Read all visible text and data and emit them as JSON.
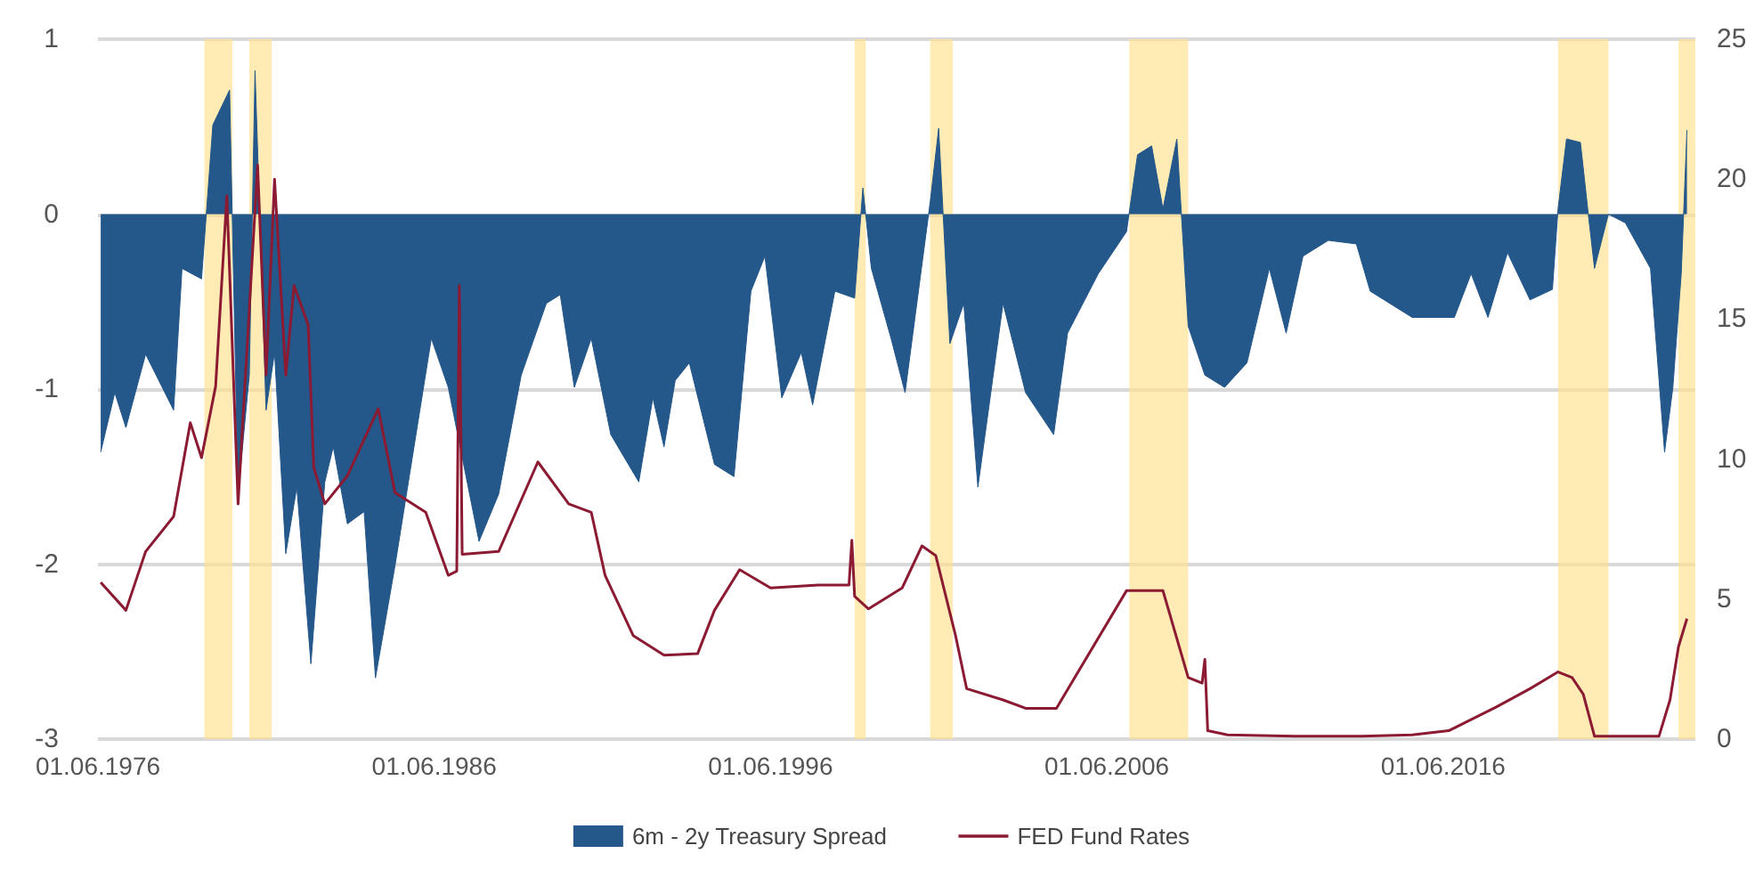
{
  "chart_data": {
    "type": "area",
    "xlim": [
      "1976-06-01",
      "2023-12-01"
    ],
    "xticks": [
      {
        "value": "1976-06-01",
        "label": "01.06.1976"
      },
      {
        "value": "1986-06-01",
        "label": "01.06.1986"
      },
      {
        "value": "1996-06-01",
        "label": "01.06.1996"
      },
      {
        "value": "2006-06-01",
        "label": "01.06.2006"
      },
      {
        "value": "2016-06-01",
        "label": "01.06.2016"
      }
    ],
    "ylim": [
      -3,
      1
    ],
    "yticks": [
      -3,
      -2,
      -1,
      0,
      1
    ],
    "y2lim": [
      0,
      25
    ],
    "y2ticks": [
      0,
      5,
      10,
      15,
      20,
      25
    ],
    "grid": "y",
    "legend": "bottom",
    "marker": "none",
    "series": [
      {
        "name": "6m - 2y Treasury Spread",
        "color": "#24578a",
        "x": [
          "1976-07",
          "1976-12",
          "1977-04",
          "1977-11",
          "1978-09",
          "1978-12",
          "1979-07",
          "1979-11",
          "1980-05",
          "1980-08",
          "1980-12",
          "1981-02",
          "1981-06",
          "1981-09",
          "1982-01",
          "1982-05",
          "1982-10",
          "1983-03",
          "1983-06",
          "1983-11",
          "1984-05",
          "1984-09",
          "1985-04",
          "1986-05",
          "1986-11",
          "1987-10",
          "1988-05",
          "1989-01",
          "1989-10",
          "1990-03",
          "1990-08",
          "1991-02",
          "1991-09",
          "1992-07",
          "1992-12",
          "1993-04",
          "1993-08",
          "1994-01",
          "1994-10",
          "1995-05",
          "1995-11",
          "1996-04",
          "1996-10",
          "1997-05",
          "1997-09",
          "1998-05",
          "1998-12",
          "1999-03",
          "1999-06",
          "2000-01",
          "2000-06",
          "2001-03",
          "2001-06",
          "2001-10",
          "2002-03",
          "2002-08",
          "2003-05",
          "2004-01",
          "2004-11",
          "2005-04",
          "2006-03",
          "2007-01",
          "2007-05",
          "2007-10",
          "2008-02",
          "2008-07",
          "2008-11",
          "2009-05",
          "2009-12",
          "2010-08",
          "2011-04",
          "2011-10",
          "2012-04",
          "2013-01",
          "2013-11",
          "2014-04",
          "2015-07",
          "2016-10",
          "2017-04",
          "2017-10",
          "2018-05",
          "2019-01",
          "2019-09",
          "2019-11",
          "2020-02",
          "2020-07",
          "2020-10",
          "2020-12",
          "2021-05",
          "2021-11",
          "2022-08",
          "2023-01",
          "2023-04",
          "2023-07",
          "2023-09"
        ],
        "values": [
          -1.36,
          -1.02,
          -1.22,
          -0.8,
          -1.12,
          -0.31,
          -0.37,
          0.51,
          0.71,
          -1.6,
          -0.92,
          0.82,
          -1.12,
          -0.79,
          -1.94,
          -1.56,
          -2.57,
          -1.53,
          -1.33,
          -1.77,
          -1.7,
          -2.65,
          -2.01,
          -0.71,
          -0.99,
          -1.87,
          -1.6,
          -0.92,
          -0.51,
          -0.46,
          -0.99,
          -0.71,
          -1.26,
          -1.53,
          -1.05,
          -1.33,
          -0.95,
          -0.85,
          -1.43,
          -1.5,
          -0.44,
          -0.24,
          -1.05,
          -0.79,
          -1.09,
          -0.44,
          -0.48,
          0.15,
          -0.31,
          -0.71,
          -1.02,
          0.07,
          0.49,
          -0.74,
          -0.51,
          -1.56,
          -0.51,
          -1.02,
          -1.26,
          -0.68,
          -0.34,
          -0.1,
          0.34,
          0.39,
          0.03,
          0.43,
          -0.64,
          -0.92,
          -0.99,
          -0.85,
          -0.31,
          -0.68,
          -0.24,
          -0.15,
          -0.17,
          -0.44,
          -0.59,
          -0.59,
          -0.34,
          -0.59,
          -0.22,
          -0.49,
          -0.43,
          0.03,
          0.43,
          0.41,
          -0.03,
          -0.31,
          0.0,
          -0.05,
          -0.31,
          -1.36,
          -0.99,
          -0.34,
          0.48
        ]
      },
      {
        "name": "FED Fund Rates",
        "type": "line",
        "axis": "y2",
        "color": "#8b1a32",
        "x": [
          "1976-07",
          "1977-04",
          "1977-11",
          "1978-09",
          "1979-03",
          "1979-07",
          "1979-12",
          "1980-04",
          "1980-08",
          "1981-03",
          "1981-06",
          "1981-09",
          "1982-01",
          "1982-04",
          "1982-09",
          "1982-11",
          "1983-03",
          "1983-11",
          "1984-10",
          "1985-04",
          "1986-03",
          "1986-11",
          "1987-02",
          "1987-03",
          "1987-04",
          "1988-05",
          "1989-07",
          "1990-06",
          "1991-02",
          "1991-07",
          "1992-05",
          "1993-04",
          "1994-04",
          "1994-10",
          "1995-07",
          "1996-06",
          "1997-11",
          "1998-10",
          "1998-11",
          "1998-12",
          "1999-05",
          "2000-05",
          "2000-12",
          "2001-05",
          "2001-12",
          "2002-04",
          "2003-05",
          "2004-01",
          "2004-12",
          "2007-01",
          "2008-02",
          "2008-11",
          "2009-04",
          "2009-05",
          "2009-06",
          "2010-01",
          "2012-01",
          "2014-01",
          "2015-07",
          "2016-08",
          "2018-01",
          "2019-01",
          "2019-11",
          "2020-04",
          "2020-08",
          "2020-12",
          "2022-11",
          "2023-03",
          "2023-06",
          "2023-09"
        ],
        "values": [
          5.6,
          4.6,
          6.7,
          7.95,
          11.3,
          10.05,
          12.6,
          19.4,
          8.4,
          20.5,
          13.0,
          20.0,
          13.0,
          16.2,
          14.8,
          9.7,
          8.4,
          9.4,
          11.8,
          8.8,
          8.1,
          5.85,
          6.0,
          16.2,
          6.6,
          6.7,
          9.9,
          8.4,
          8.1,
          5.85,
          3.7,
          3.0,
          3.05,
          4.6,
          6.05,
          5.4,
          5.5,
          5.5,
          7.1,
          5.1,
          4.65,
          5.4,
          6.9,
          6.55,
          3.7,
          1.8,
          1.4,
          1.1,
          1.1,
          5.3,
          5.3,
          2.2,
          2.0,
          2.85,
          0.3,
          0.15,
          0.1,
          0.1,
          0.15,
          0.3,
          1.15,
          1.8,
          2.4,
          2.2,
          1.6,
          0.1,
          0.1,
          1.4,
          3.3,
          4.3
        ]
      }
    ],
    "bands": [
      {
        "axis": "x",
        "from": "1979-08",
        "to": "1980-06",
        "color": "#ffe08a"
      },
      {
        "axis": "x",
        "from": "1980-12",
        "to": "1981-08",
        "color": "#ffe08a"
      },
      {
        "axis": "x",
        "from": "1998-12",
        "to": "1999-04",
        "color": "#ffe08a"
      },
      {
        "axis": "x",
        "from": "2001-03",
        "to": "2001-11",
        "color": "#ffe08a"
      },
      {
        "axis": "x",
        "from": "2007-02",
        "to": "2008-11",
        "color": "#ffe08a"
      },
      {
        "axis": "x",
        "from": "2019-11",
        "to": "2021-05",
        "color": "#ffe08a"
      },
      {
        "axis": "x",
        "from": "2023-06",
        "to": "2023-12",
        "color": "#ffe08a"
      }
    ]
  }
}
